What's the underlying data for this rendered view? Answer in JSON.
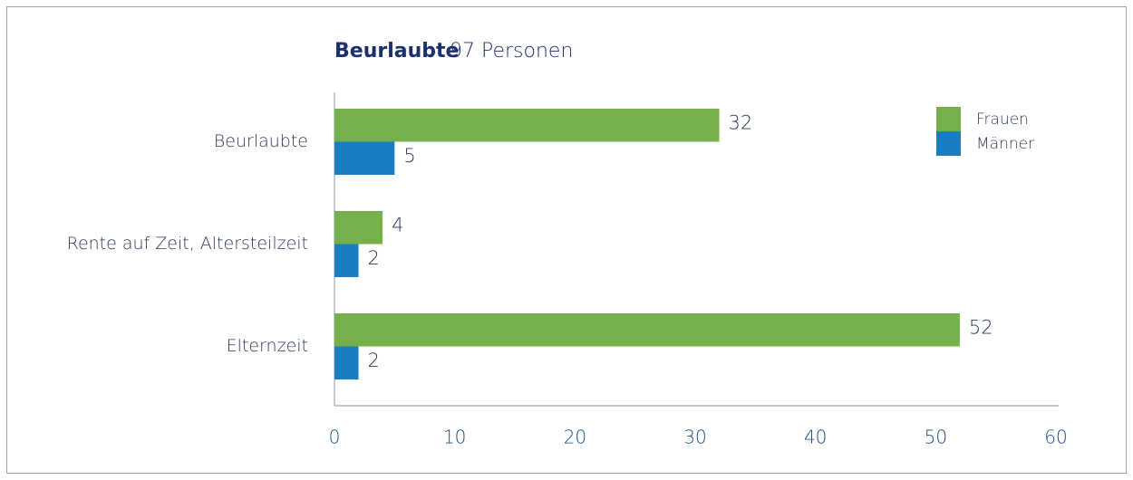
{
  "chart_data": {
    "type": "bar",
    "orientation": "horizontal",
    "title": "Beurlaubte",
    "subtitle": "97 Personen",
    "categories": [
      "Beurlaubte",
      "Rente auf Zeit, Altersteilzeit",
      "Elternzeit"
    ],
    "series": [
      {
        "name": "Frauen",
        "color": "#76b04a",
        "values": [
          32,
          4,
          52
        ]
      },
      {
        "name": "Männer",
        "color": "#1a7cc1",
        "values": [
          5,
          2,
          2
        ]
      }
    ],
    "xlim": [
      0,
      60
    ],
    "xticks": [
      0,
      10,
      20,
      30,
      40,
      50,
      60
    ],
    "legend": "upper right",
    "grid": false
  }
}
